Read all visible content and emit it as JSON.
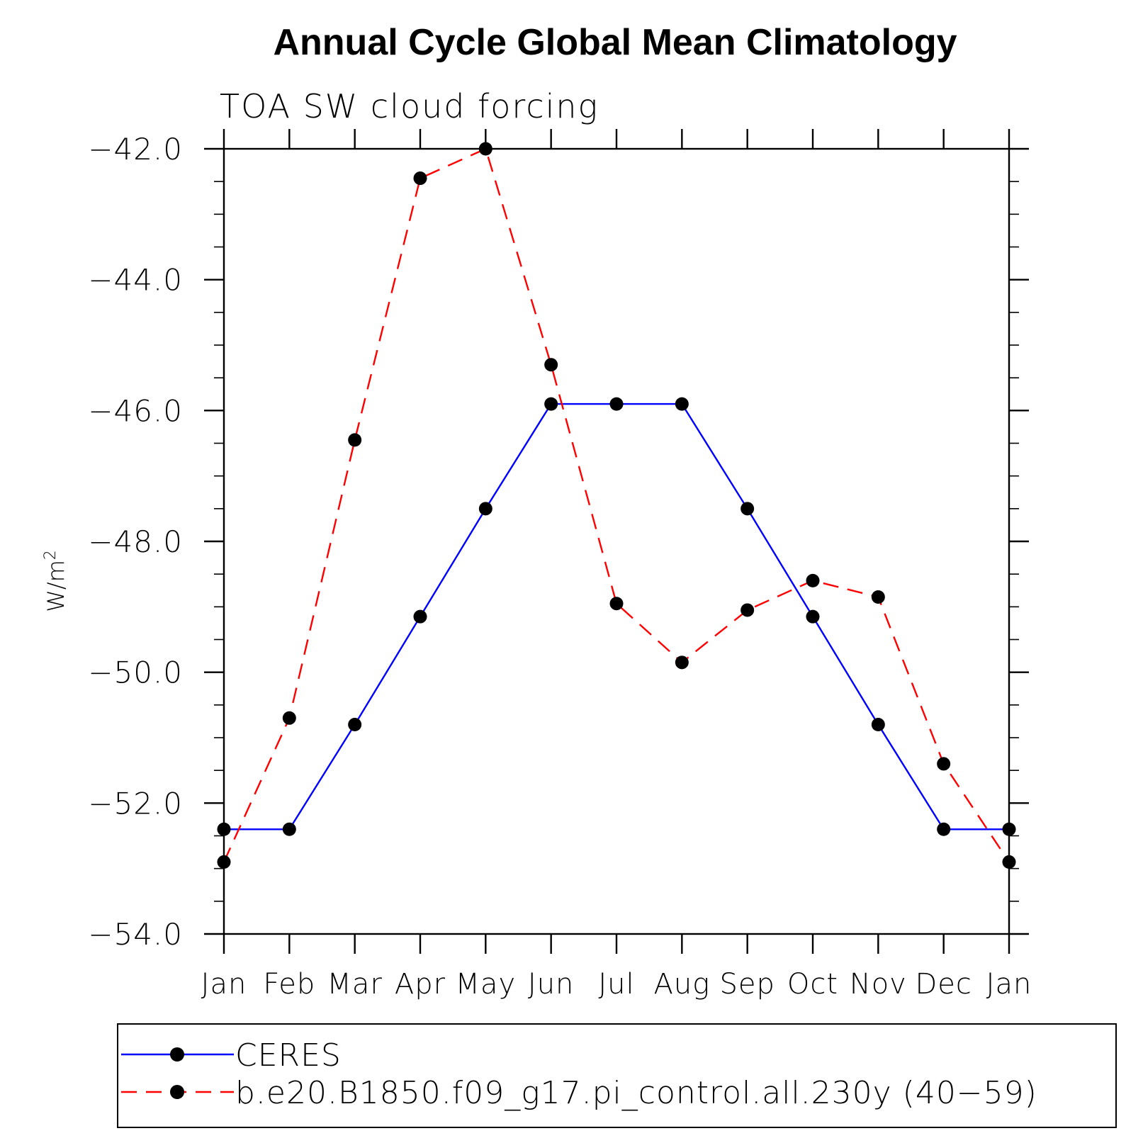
{
  "chart_data": {
    "type": "line",
    "title": "Annual Cycle Global Mean Climatology",
    "subtitle": "TOA SW cloud forcing",
    "ylabel_base": "W/m",
    "ylabel_sup": "2",
    "xlabel": "",
    "categories": [
      "Jan",
      "Feb",
      "Mar",
      "Apr",
      "May",
      "Jun",
      "Jul",
      "Aug",
      "Sep",
      "Oct",
      "Nov",
      "Dec",
      "Jan"
    ],
    "ylim": [
      -54.0,
      -42.0
    ],
    "yticks": [
      "-42.0",
      "-44.0",
      "-46.0",
      "-48.0",
      "-50.0",
      "-52.0",
      "-54.0"
    ],
    "ytick_values": [
      -42,
      -44,
      -46,
      -48,
      -50,
      -52,
      -54
    ],
    "grid": false,
    "legend_position": "bottom",
    "series": [
      {
        "name": "CERES",
        "color": "#0000ff",
        "dash": "solid",
        "values": [
          -52.4,
          -52.4,
          -50.8,
          -49.15,
          -47.5,
          -45.9,
          -45.9,
          -45.9,
          -47.5,
          -49.15,
          -50.8,
          -52.4,
          -52.4
        ]
      },
      {
        "name": "b.e20.B1850.f09_g17.pi_control.all.230y (40−59)",
        "color": "#ff0000",
        "dash": "dashed",
        "values": [
          -52.9,
          -50.7,
          -46.45,
          -42.45,
          -42.0,
          -45.3,
          -48.95,
          -49.85,
          -49.05,
          -48.6,
          -48.85,
          -51.4,
          -52.9
        ]
      }
    ],
    "marker_color": "#000000"
  }
}
